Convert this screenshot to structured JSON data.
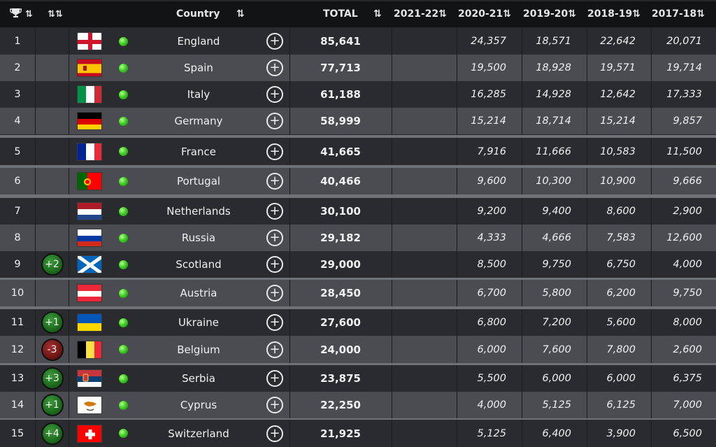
{
  "header": {
    "rank_icon": "trophy-icon",
    "rank_sort": "⇅",
    "change_sort": "⇅",
    "country": "Country",
    "country_sort": "⇅",
    "total": "TOTAL",
    "total_sort": "⇅",
    "seasons": [
      "2021-22⇅",
      "2020-21⇅",
      "2019-20⇅",
      "2018-19⇅",
      "2017-18⇅"
    ]
  },
  "rows": [
    {
      "rank": "1",
      "change": "",
      "flag": "england-flag",
      "country": "England",
      "total": "85,641",
      "s21": "",
      "s20": "24,357",
      "s19": "18,571",
      "s18": "22,642",
      "s17": "20,071"
    },
    {
      "rank": "2",
      "change": "",
      "flag": "spain-flag",
      "country": "Spain",
      "total": "77,713",
      "s21": "",
      "s20": "19,500",
      "s19": "18,928",
      "s18": "19,571",
      "s17": "19,714"
    },
    {
      "rank": "3",
      "change": "",
      "flag": "italy-flag",
      "country": "Italy",
      "total": "61,188",
      "s21": "",
      "s20": "16,285",
      "s19": "14,928",
      "s18": "12,642",
      "s17": "17,333"
    },
    {
      "rank": "4",
      "change": "",
      "flag": "germany-flag",
      "country": "Germany",
      "total": "58,999",
      "s21": "",
      "s20": "15,214",
      "s19": "18,714",
      "s18": "15,214",
      "s17": "9,857"
    },
    {
      "rank": "5",
      "change": "",
      "flag": "france-flag",
      "country": "France",
      "total": "41,665",
      "s21": "",
      "s20": "7,916",
      "s19": "11,666",
      "s18": "10,583",
      "s17": "11,500"
    },
    {
      "rank": "6",
      "change": "",
      "flag": "portugal-flag",
      "country": "Portugal",
      "total": "40,466",
      "s21": "",
      "s20": "9,600",
      "s19": "10,300",
      "s18": "10,900",
      "s17": "9,666"
    },
    {
      "rank": "7",
      "change": "",
      "flag": "netherlands-flag",
      "country": "Netherlands",
      "total": "30,100",
      "s21": "",
      "s20": "9,200",
      "s19": "9,400",
      "s18": "8,600",
      "s17": "2,900"
    },
    {
      "rank": "8",
      "change": "",
      "flag": "russia-flag",
      "country": "Russia",
      "total": "29,182",
      "s21": "",
      "s20": "4,333",
      "s19": "4,666",
      "s18": "7,583",
      "s17": "12,600"
    },
    {
      "rank": "9",
      "change": "+2",
      "flag": "scotland-flag",
      "country": "Scotland",
      "total": "29,000",
      "s21": "",
      "s20": "8,500",
      "s19": "9,750",
      "s18": "6,750",
      "s17": "4,000"
    },
    {
      "rank": "10",
      "change": "",
      "flag": "austria-flag",
      "country": "Austria",
      "total": "28,450",
      "s21": "",
      "s20": "6,700",
      "s19": "5,800",
      "s18": "6,200",
      "s17": "9,750"
    },
    {
      "rank": "11",
      "change": "+1",
      "flag": "ukraine-flag",
      "country": "Ukraine",
      "total": "27,600",
      "s21": "",
      "s20": "6,800",
      "s19": "7,200",
      "s18": "5,600",
      "s17": "8,000"
    },
    {
      "rank": "12",
      "change": "-3",
      "flag": "belgium-flag",
      "country": "Belgium",
      "total": "24,000",
      "s21": "",
      "s20": "6,000",
      "s19": "7,600",
      "s18": "7,800",
      "s17": "2,600"
    },
    {
      "rank": "13",
      "change": "+3",
      "flag": "serbia-flag",
      "country": "Serbia",
      "total": "23,875",
      "s21": "",
      "s20": "5,500",
      "s19": "6,000",
      "s18": "6,000",
      "s17": "6,375"
    },
    {
      "rank": "14",
      "change": "+1",
      "flag": "cyprus-flag",
      "country": "Cyprus",
      "total": "22,250",
      "s21": "",
      "s20": "4,000",
      "s19": "5,125",
      "s18": "6,125",
      "s17": "7,000"
    },
    {
      "rank": "15",
      "change": "+4",
      "flag": "switzerland-flag",
      "country": "Switzerland",
      "total": "21,925",
      "s21": "",
      "s20": "5,125",
      "s19": "6,400",
      "s18": "3,900",
      "s17": "6,500"
    }
  ],
  "colors": {
    "header_bg": "#121315",
    "row_dark": "#2a2b2f",
    "row_light": "#4a4c51",
    "separator": "#6e7176",
    "status_dot": "#3fcf25",
    "badge_up": "#1c6a1c",
    "badge_down": "#701515"
  }
}
